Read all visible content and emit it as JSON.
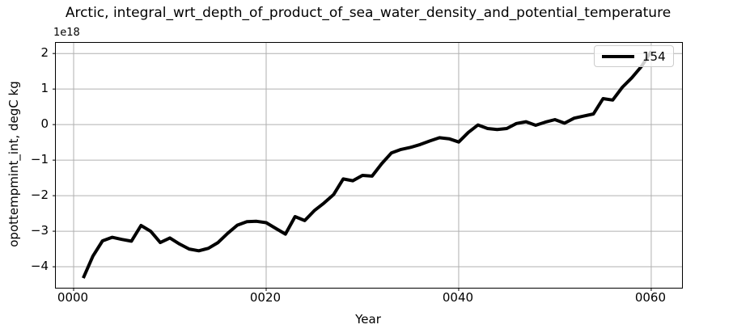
{
  "title": "Arctic, integral_wrt_depth_of_product_of_sea_water_density_and_potential_temperature",
  "axes": {
    "xlabel": "Year",
    "ylabel": "opottempmint_int, degC kg",
    "offset_text": "1e18",
    "x_ticks": {
      "values": [
        0,
        20,
        40,
        60
      ],
      "labels": [
        "0000",
        "0020",
        "0040",
        "0060"
      ]
    },
    "y_ticks": {
      "values": [
        2,
        1,
        0,
        -1,
        -2,
        -3,
        -4
      ],
      "labels": [
        "2",
        "1",
        "0",
        "−1",
        "−2",
        "−3",
        "−4"
      ]
    }
  },
  "legend": {
    "position": "upper right",
    "entries": [
      {
        "label": "154",
        "color": "#000000"
      }
    ]
  },
  "colors": {
    "line": "#000000",
    "grid": "#b0b0b0",
    "spine": "#000000",
    "legend_border": "#cccccc"
  },
  "chart_data": {
    "type": "line",
    "title": "Arctic, integral_wrt_depth_of_product_of_sea_water_density_and_potential_temperature",
    "xlabel": "Year",
    "ylabel": "opottempmint_int, degC kg",
    "y_unit_multiplier": "1e18",
    "xlim": [
      -1.85,
      63.2
    ],
    "ylim": [
      -4.59,
      2.3
    ],
    "grid": true,
    "legend_position": "upper right",
    "series": [
      {
        "name": "154",
        "color": "#000000",
        "linewidth": 4,
        "x": [
          1,
          2,
          3,
          4,
          5,
          6,
          7,
          8,
          9,
          10,
          11,
          12,
          13,
          14,
          15,
          16,
          17,
          18,
          19,
          20,
          21,
          22,
          23,
          24,
          25,
          26,
          27,
          28,
          29,
          30,
          31,
          32,
          33,
          34,
          35,
          36,
          37,
          38,
          39,
          40,
          41,
          42,
          43,
          44,
          45,
          46,
          47,
          48,
          49,
          50,
          51,
          52,
          53,
          54,
          55,
          56,
          57,
          58,
          59,
          60
        ],
        "y": [
          -4.32,
          -3.7,
          -3.27,
          -3.17,
          -3.23,
          -3.28,
          -2.84,
          -3.0,
          -3.32,
          -3.19,
          -3.36,
          -3.5,
          -3.55,
          -3.48,
          -3.32,
          -3.06,
          -2.83,
          -2.73,
          -2.72,
          -2.76,
          -2.92,
          -3.08,
          -2.59,
          -2.7,
          -2.42,
          -2.21,
          -1.97,
          -1.53,
          -1.58,
          -1.43,
          -1.45,
          -1.1,
          -0.8,
          -0.7,
          -0.64,
          -0.56,
          -0.46,
          -0.37,
          -0.4,
          -0.49,
          -0.22,
          -0.01,
          -0.11,
          -0.14,
          -0.11,
          0.03,
          0.08,
          -0.02,
          0.07,
          0.14,
          0.04,
          0.18,
          0.24,
          0.3,
          0.73,
          0.69,
          1.05,
          1.32,
          1.64,
          2.06
        ]
      }
    ]
  }
}
